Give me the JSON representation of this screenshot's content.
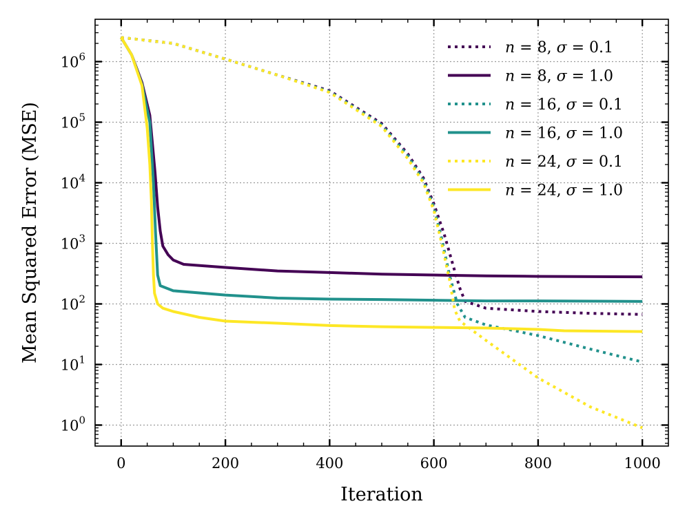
{
  "chart_data": {
    "type": "line",
    "title": "",
    "xlabel": "Iteration",
    "ylabel": "Mean Squared Error (MSE)",
    "xlim": [
      -50,
      1050
    ],
    "ylim": [
      0.45,
      5000000
    ],
    "yscale": "log",
    "grid": true,
    "legend_position": "top-right",
    "x_ticks": [
      0,
      200,
      400,
      600,
      800,
      1000
    ],
    "x_tick_labels": [
      "0",
      "200",
      "400",
      "600",
      "800",
      "1000"
    ],
    "y_ticks": [
      1,
      10,
      100,
      1000,
      10000,
      100000,
      1000000
    ],
    "y_tick_labels": [
      {
        "base": "10",
        "exp": "0"
      },
      {
        "base": "10",
        "exp": "1"
      },
      {
        "base": "10",
        "exp": "2"
      },
      {
        "base": "10",
        "exp": "3"
      },
      {
        "base": "10",
        "exp": "4"
      },
      {
        "base": "10",
        "exp": "5"
      },
      {
        "base": "10",
        "exp": "6"
      }
    ],
    "series": [
      {
        "name": "n = 8, σ = 0.1",
        "label_parts": [
          "n",
          " = 8, ",
          "σ",
          " = 0.1"
        ],
        "color": "#440154",
        "style": "dotted",
        "points": [
          [
            0,
            2500000
          ],
          [
            100,
            2000000
          ],
          [
            200,
            1100000
          ],
          [
            300,
            600000
          ],
          [
            400,
            330000
          ],
          [
            500,
            95000
          ],
          [
            550,
            30000
          ],
          [
            580,
            12000
          ],
          [
            600,
            4500
          ],
          [
            620,
            1400
          ],
          [
            640,
            350
          ],
          [
            650,
            180
          ],
          [
            660,
            110
          ],
          [
            700,
            85
          ],
          [
            800,
            75
          ],
          [
            900,
            70
          ],
          [
            1000,
            67
          ]
        ]
      },
      {
        "name": "n = 8, σ = 1.0",
        "label_parts": [
          "n",
          " = 8, ",
          "σ",
          " = 1.0"
        ],
        "color": "#440154",
        "style": "solid",
        "points": [
          [
            0,
            2500000
          ],
          [
            20,
            1300000
          ],
          [
            40,
            450000
          ],
          [
            55,
            130000
          ],
          [
            65,
            15000
          ],
          [
            70,
            4000
          ],
          [
            75,
            1600
          ],
          [
            80,
            900
          ],
          [
            90,
            650
          ],
          [
            100,
            530
          ],
          [
            120,
            450
          ],
          [
            200,
            400
          ],
          [
            300,
            350
          ],
          [
            400,
            330
          ],
          [
            500,
            310
          ],
          [
            600,
            300
          ],
          [
            700,
            290
          ],
          [
            800,
            285
          ],
          [
            1000,
            280
          ]
        ]
      },
      {
        "name": "n = 16, σ = 0.1",
        "label_parts": [
          "n",
          " = 16, ",
          "σ",
          " = 0.1"
        ],
        "color": "#21918c",
        "style": "dotted",
        "points": [
          [
            0,
            2500000
          ],
          [
            100,
            2000000
          ],
          [
            200,
            1100000
          ],
          [
            300,
            600000
          ],
          [
            400,
            320000
          ],
          [
            500,
            90000
          ],
          [
            550,
            28000
          ],
          [
            580,
            11000
          ],
          [
            600,
            4000
          ],
          [
            615,
            1200
          ],
          [
            630,
            300
          ],
          [
            645,
            100
          ],
          [
            660,
            60
          ],
          [
            700,
            45
          ],
          [
            800,
            30
          ],
          [
            900,
            18
          ],
          [
            1000,
            11
          ]
        ]
      },
      {
        "name": "n = 16, σ = 1.0",
        "label_parts": [
          "n",
          " = 16, ",
          "σ",
          " = 1.0"
        ],
        "color": "#21918c",
        "style": "solid",
        "points": [
          [
            0,
            2500000
          ],
          [
            20,
            1300000
          ],
          [
            40,
            420000
          ],
          [
            55,
            100000
          ],
          [
            62,
            10000
          ],
          [
            66,
            1500
          ],
          [
            70,
            300
          ],
          [
            75,
            200
          ],
          [
            100,
            165
          ],
          [
            200,
            140
          ],
          [
            300,
            125
          ],
          [
            400,
            120
          ],
          [
            500,
            118
          ],
          [
            600,
            115
          ],
          [
            700,
            112
          ],
          [
            800,
            112
          ],
          [
            1000,
            110
          ]
        ]
      },
      {
        "name": "n = 24, σ = 0.1",
        "label_parts": [
          "n",
          " = 24, ",
          "σ",
          " = 0.1"
        ],
        "color": "#fde725",
        "style": "dotted",
        "points": [
          [
            0,
            2500000
          ],
          [
            100,
            2000000
          ],
          [
            200,
            1100000
          ],
          [
            300,
            600000
          ],
          [
            400,
            310000
          ],
          [
            500,
            85000
          ],
          [
            550,
            25000
          ],
          [
            580,
            10000
          ],
          [
            600,
            3500
          ],
          [
            615,
            1000
          ],
          [
            630,
            250
          ],
          [
            640,
            80
          ],
          [
            650,
            52
          ],
          [
            700,
            25
          ],
          [
            800,
            6
          ],
          [
            900,
            2
          ],
          [
            1000,
            0.9
          ]
        ]
      },
      {
        "name": "n = 24, σ = 1.0",
        "label_parts": [
          "n",
          " = 24, ",
          "σ",
          " = 1.0"
        ],
        "color": "#fde725",
        "style": "solid",
        "points": [
          [
            0,
            2500000
          ],
          [
            20,
            1300000
          ],
          [
            40,
            400000
          ],
          [
            50,
            80000
          ],
          [
            55,
            20000
          ],
          [
            58,
            5000
          ],
          [
            60,
            1000
          ],
          [
            62,
            300
          ],
          [
            64,
            150
          ],
          [
            70,
            100
          ],
          [
            80,
            85
          ],
          [
            100,
            75
          ],
          [
            150,
            60
          ],
          [
            200,
            52
          ],
          [
            300,
            48
          ],
          [
            400,
            44
          ],
          [
            500,
            42
          ],
          [
            600,
            41
          ],
          [
            700,
            40
          ],
          [
            800,
            38
          ],
          [
            850,
            36
          ],
          [
            1000,
            35
          ]
        ]
      }
    ]
  }
}
